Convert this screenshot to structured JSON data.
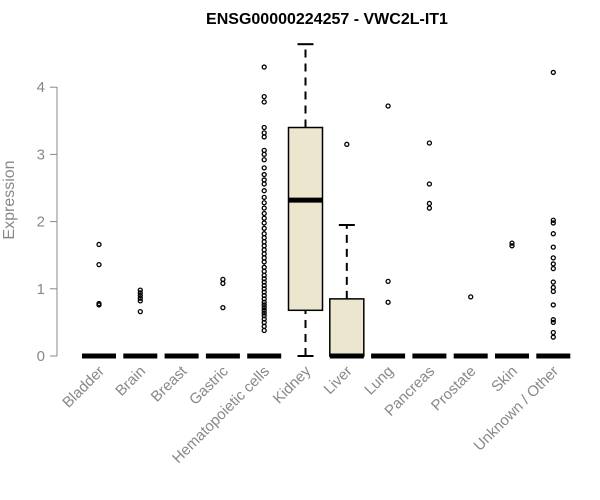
{
  "chart_data": {
    "type": "box",
    "title": "ENSG00000224257 - VWC2L-IT1",
    "xlabel": "",
    "ylabel": "Expression",
    "ylim": [
      0,
      4.7
    ],
    "yticks": [
      0,
      1,
      2,
      3,
      4
    ],
    "categories": [
      "Bladder",
      "Brain",
      "Breast",
      "Gastric",
      "Hematopoietic cells",
      "Kidney",
      "Liver",
      "Lung",
      "Pancreas",
      "Prostate",
      "Skin",
      "Unknown / Other"
    ],
    "box_fill": "#ede6cf",
    "boxes": [
      {
        "q1": 0,
        "median": 0,
        "q3": 0,
        "whisker_low": 0,
        "whisker_high": 0,
        "outliers": [
          0.76,
          0.78,
          1.36,
          1.66
        ]
      },
      {
        "q1": 0,
        "median": 0,
        "q3": 0,
        "whisker_low": 0,
        "whisker_high": 0,
        "outliers": [
          0.66,
          0.82,
          0.86,
          0.9,
          0.94,
          0.98
        ]
      },
      {
        "q1": 0,
        "median": 0,
        "q3": 0,
        "whisker_low": 0,
        "whisker_high": 0,
        "outliers": []
      },
      {
        "q1": 0,
        "median": 0,
        "q3": 0,
        "whisker_low": 0,
        "whisker_high": 0,
        "outliers": [
          0.72,
          1.08,
          1.14
        ]
      },
      {
        "q1": 0,
        "median": 0,
        "q3": 0,
        "whisker_low": 0,
        "whisker_high": 0,
        "outliers": [
          0.38,
          0.44,
          0.5,
          0.55,
          0.6,
          0.64,
          0.68,
          0.72,
          0.76,
          0.8,
          0.85,
          0.9,
          0.95,
          1.0,
          1.05,
          1.1,
          1.15,
          1.2,
          1.26,
          1.32,
          1.4,
          1.46,
          1.52,
          1.58,
          1.64,
          1.7,
          1.76,
          1.82,
          1.9,
          1.98,
          2.05,
          2.12,
          2.2,
          2.28,
          2.36,
          2.46,
          2.56,
          2.62,
          2.7,
          2.8,
          2.92,
          3.0,
          3.06,
          3.26,
          3.32,
          3.4,
          3.78,
          3.86,
          4.3
        ]
      },
      {
        "q1": 0.68,
        "median": 2.32,
        "q3": 3.4,
        "whisker_low": 0,
        "whisker_high": 4.64,
        "outliers": []
      },
      {
        "q1": 0,
        "median": 0,
        "q3": 0.85,
        "whisker_low": 0,
        "whisker_high": 1.95,
        "outliers": [
          3.15
        ]
      },
      {
        "q1": 0,
        "median": 0,
        "q3": 0,
        "whisker_low": 0,
        "whisker_high": 0,
        "outliers": [
          0.8,
          1.11,
          3.72
        ]
      },
      {
        "q1": 0,
        "median": 0,
        "q3": 0,
        "whisker_low": 0,
        "whisker_high": 0,
        "outliers": [
          2.2,
          2.27,
          2.56,
          3.17
        ]
      },
      {
        "q1": 0,
        "median": 0,
        "q3": 0,
        "whisker_low": 0,
        "whisker_high": 0,
        "outliers": [
          0.88
        ]
      },
      {
        "q1": 0,
        "median": 0,
        "q3": 0,
        "whisker_low": 0,
        "whisker_high": 0,
        "outliers": [
          1.64,
          1.68
        ]
      },
      {
        "q1": 0,
        "median": 0,
        "q3": 0,
        "whisker_low": 0,
        "whisker_high": 0,
        "outliers": [
          0.28,
          0.35,
          0.5,
          0.54,
          0.76,
          0.96,
          1.02,
          1.1,
          1.3,
          1.37,
          1.46,
          1.62,
          1.82,
          1.98,
          2.02,
          4.22
        ]
      }
    ]
  }
}
